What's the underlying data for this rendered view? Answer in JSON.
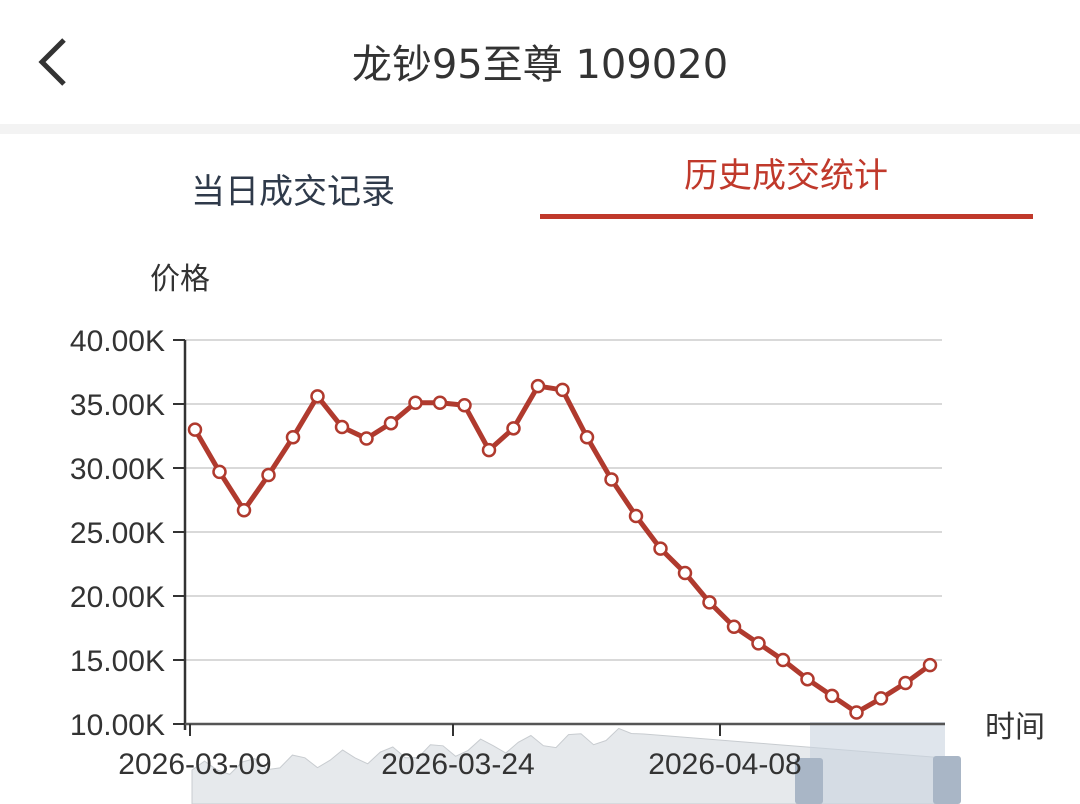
{
  "header": {
    "title": "龙钞95至尊 109020",
    "back_icon": "chevron-left-icon"
  },
  "tabs": [
    {
      "label": "当日成交记录",
      "active": false
    },
    {
      "label": "历史成交统计",
      "active": true
    }
  ],
  "colors": {
    "accent": "#c0392b",
    "line": "#b03a2e",
    "grid": "#d9d9d9"
  },
  "chart_data": {
    "type": "line",
    "ylabel": "价格",
    "xlabel": "时间",
    "ylim": [
      10000,
      40000
    ],
    "y_ticks": [
      "10.00K",
      "15.00K",
      "20.00K",
      "25.00K",
      "30.00K",
      "35.00K",
      "40.00K"
    ],
    "x_ticks": [
      "2026-03-09",
      "2026-03-24",
      "2026-04-08"
    ],
    "grid": true,
    "values": [
      33000,
      29700,
      26700,
      29450,
      32400,
      35600,
      33200,
      32300,
      33500,
      35100,
      35100,
      34900,
      31400,
      33100,
      36400,
      36100,
      32400,
      29100,
      26250,
      23700,
      21800,
      19500,
      17600,
      16300,
      15000,
      13500,
      12200,
      10900,
      12000,
      13200,
      14600
    ],
    "data_zoom": {
      "visible": true,
      "selection": "end of range"
    }
  }
}
